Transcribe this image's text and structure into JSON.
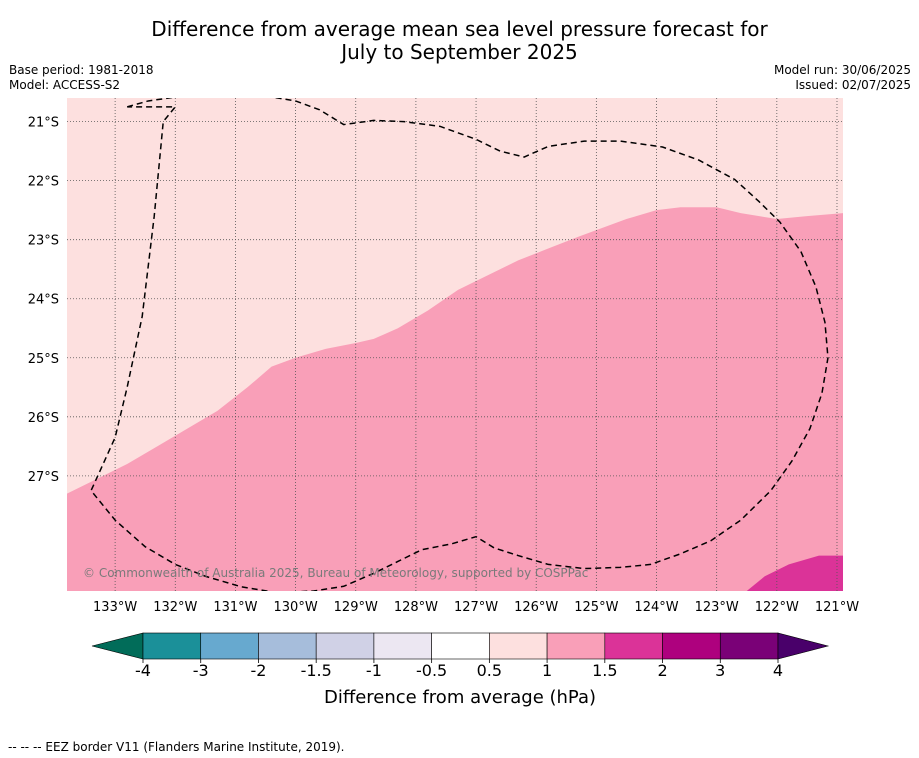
{
  "header": {
    "title_line1": "Difference from average mean sea level pressure forecast for",
    "title_line2": "July to September 2025",
    "base_period": "Base period: 1981-2018",
    "model": "Model: ACCESS-S2",
    "model_run": "Model run: 30/06/2025",
    "issued": "Issued: 02/07/2025"
  },
  "map": {
    "lon_range": [
      -133.8,
      -120.9
    ],
    "lat_range": [
      -28.95,
      -20.6
    ],
    "lon_ticks": [
      -133,
      -132,
      -131,
      -130,
      -129,
      -128,
      -127,
      -126,
      -125,
      -124,
      -123,
      -122,
      -121
    ],
    "lon_tick_labels": [
      "133°W",
      "132°W",
      "131°W",
      "130°W",
      "129°W",
      "128°W",
      "127°W",
      "126°W",
      "125°W",
      "124°W",
      "123°W",
      "122°W",
      "121°W"
    ],
    "lat_ticks": [
      -21,
      -22,
      -23,
      -24,
      -25,
      -26,
      -27
    ],
    "lat_tick_labels": [
      "21°S",
      "22°S",
      "23°S",
      "24°S",
      "25°S",
      "26°S",
      "27°S"
    ],
    "copyright": "© Commonwealth of Australia 2025, Bureau of Meteorology, supported by COSPPac",
    "fill_colors": {
      "band_0.5_1": "#fde0df",
      "band_1_1.5": "#f99fb8",
      "band_1.5_2": "#db3398"
    },
    "region_1_to_1_5_boundary": [
      [
        -133.8,
        -27.3
      ],
      [
        -133.2,
        -27.0
      ],
      [
        -132.8,
        -26.8
      ],
      [
        -132.3,
        -26.5
      ],
      [
        -131.8,
        -26.2
      ],
      [
        -131.3,
        -25.9
      ],
      [
        -130.8,
        -25.5
      ],
      [
        -130.4,
        -25.15
      ],
      [
        -130.0,
        -25.0
      ],
      [
        -129.5,
        -24.85
      ],
      [
        -129.0,
        -24.75
      ],
      [
        -128.7,
        -24.68
      ],
      [
        -128.3,
        -24.5
      ],
      [
        -127.8,
        -24.2
      ],
      [
        -127.3,
        -23.85
      ],
      [
        -126.8,
        -23.6
      ],
      [
        -126.3,
        -23.35
      ],
      [
        -125.8,
        -23.15
      ],
      [
        -125.3,
        -22.95
      ],
      [
        -124.9,
        -22.8
      ],
      [
        -124.5,
        -22.65
      ],
      [
        -124.0,
        -22.5
      ],
      [
        -123.6,
        -22.45
      ],
      [
        -123.0,
        -22.45
      ],
      [
        -122.6,
        -22.55
      ],
      [
        -122.0,
        -22.65
      ],
      [
        -121.5,
        -22.6
      ],
      [
        -120.9,
        -22.55
      ]
    ],
    "region_1_5_to_2_boundary": [
      [
        -122.5,
        -28.95
      ],
      [
        -122.2,
        -28.7
      ],
      [
        -121.8,
        -28.5
      ],
      [
        -121.3,
        -28.35
      ],
      [
        -120.9,
        -28.35
      ]
    ],
    "eez_boundary": [
      [
        -132.8,
        -20.75
      ],
      [
        -132.45,
        -20.65
      ],
      [
        -131.9,
        -20.57
      ],
      [
        -131.35,
        -20.52
      ],
      [
        -130.6,
        -20.55
      ],
      [
        -130.0,
        -20.65
      ],
      [
        -129.6,
        -20.8
      ],
      [
        -129.2,
        -21.05
      ],
      [
        -128.7,
        -20.98
      ],
      [
        -128.2,
        -21.0
      ],
      [
        -127.6,
        -21.08
      ],
      [
        -127.0,
        -21.3
      ],
      [
        -126.6,
        -21.5
      ],
      [
        -126.2,
        -21.6
      ],
      [
        -125.8,
        -21.42
      ],
      [
        -125.2,
        -21.33
      ],
      [
        -124.6,
        -21.33
      ],
      [
        -123.9,
        -21.43
      ],
      [
        -123.3,
        -21.65
      ],
      [
        -122.7,
        -21.98
      ],
      [
        -122.3,
        -22.35
      ],
      [
        -121.95,
        -22.7
      ],
      [
        -121.6,
        -23.2
      ],
      [
        -121.35,
        -23.8
      ],
      [
        -121.2,
        -24.4
      ],
      [
        -121.15,
        -25.0
      ],
      [
        -121.25,
        -25.6
      ],
      [
        -121.45,
        -26.2
      ],
      [
        -121.75,
        -26.75
      ],
      [
        -122.1,
        -27.25
      ],
      [
        -122.6,
        -27.75
      ],
      [
        -123.1,
        -28.1
      ],
      [
        -123.6,
        -28.32
      ],
      [
        -124.1,
        -28.5
      ],
      [
        -124.6,
        -28.55
      ],
      [
        -125.2,
        -28.57
      ],
      [
        -125.8,
        -28.5
      ],
      [
        -126.3,
        -28.35
      ],
      [
        -126.7,
        -28.22
      ],
      [
        -127.0,
        -28.03
      ],
      [
        -127.4,
        -28.15
      ],
      [
        -127.9,
        -28.25
      ],
      [
        -128.3,
        -28.45
      ],
      [
        -128.7,
        -28.65
      ],
      [
        -129.2,
        -28.87
      ],
      [
        -129.7,
        -28.95
      ],
      [
        -130.3,
        -28.98
      ],
      [
        -130.9,
        -28.88
      ],
      [
        -131.5,
        -28.7
      ],
      [
        -132.0,
        -28.5
      ],
      [
        -132.5,
        -28.2
      ],
      [
        -133.0,
        -27.75
      ],
      [
        -133.4,
        -27.25
      ],
      [
        -133.0,
        -26.35
      ],
      [
        -132.8,
        -25.5
      ],
      [
        -132.55,
        -24.3
      ],
      [
        -132.35,
        -22.6
      ],
      [
        -132.2,
        -21.0
      ],
      [
        -132.0,
        -20.75
      ],
      [
        -132.8,
        -20.75
      ]
    ]
  },
  "colorbar": {
    "tick_labels": [
      "-4",
      "-3",
      "-2",
      "-1.5",
      "-1",
      "-0.5",
      "0.5",
      "1",
      "1.5",
      "2",
      "3",
      "4"
    ],
    "colors": [
      "#1b9099",
      "#67a9cf",
      "#a6bddb",
      "#d0d1e6",
      "#ece7f2",
      "#ffffff",
      "#fde0df",
      "#f99fb8",
      "#db3398",
      "#ae017e",
      "#7a0177"
    ],
    "under_color": "#016c59",
    "over_color": "#49006a",
    "label": "Difference from average (hPa)"
  },
  "footer": {
    "eez_note": "--  --  -- EEZ border V11 (Flanders Marine Institute, 2019)."
  }
}
